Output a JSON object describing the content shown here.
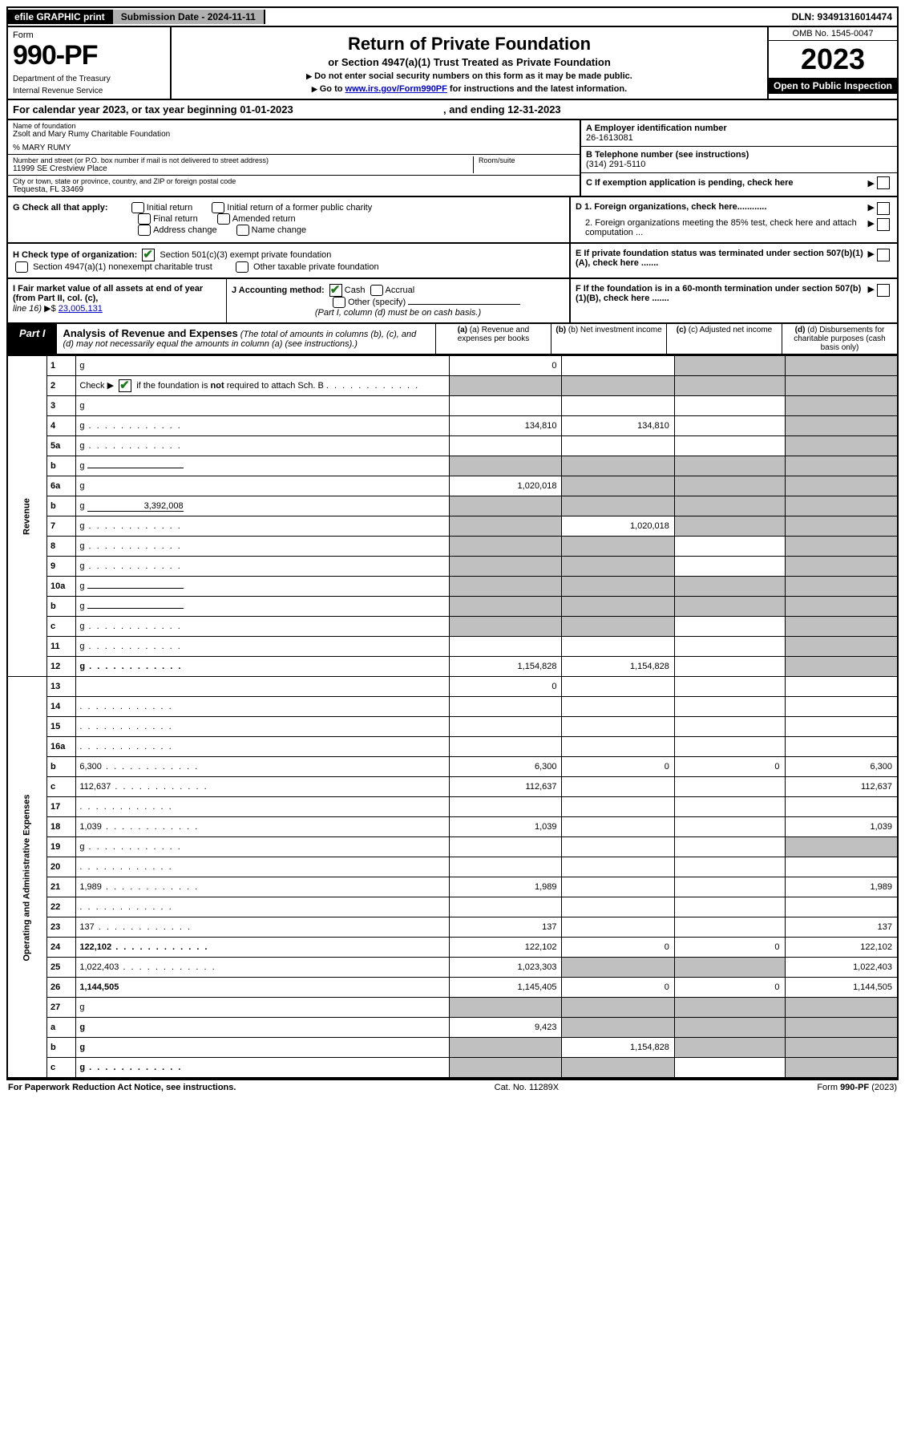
{
  "topbar": {
    "efile": "efile GRAPHIC print",
    "submission": "Submission Date - 2024-11-11",
    "dln": "DLN: 93491316014474"
  },
  "header": {
    "form_label": "Form",
    "form_number": "990-PF",
    "dept1": "Department of the Treasury",
    "dept2": "Internal Revenue Service",
    "title": "Return of Private Foundation",
    "subtitle": "or Section 4947(a)(1) Trust Treated as Private Foundation",
    "instr1": "Do not enter social security numbers on this form as it may be made public.",
    "instr2_pre": "Go to ",
    "instr2_link": "www.irs.gov/Form990PF",
    "instr2_post": " for instructions and the latest information.",
    "omb": "OMB No. 1545-0047",
    "year": "2023",
    "inspection": "Open to Public Inspection"
  },
  "cal_year": {
    "prefix": "For calendar year 2023, or tax year beginning ",
    "begin": "01-01-2023",
    "mid": " , and ending ",
    "end": "12-31-2023"
  },
  "info": {
    "name_label": "Name of foundation",
    "name": "Zsolt and Mary Rumy Charitable Foundation",
    "care_of": "% MARY RUMY",
    "addr_label": "Number and street (or P.O. box number if mail is not delivered to street address)",
    "addr": "11999 SE Crestview Place",
    "room_label": "Room/suite",
    "city_label": "City or town, state or province, country, and ZIP or foreign postal code",
    "city": "Tequesta, FL  33469",
    "ein_label": "A Employer identification number",
    "ein": "26-1613081",
    "phone_label": "B Telephone number (see instructions)",
    "phone": "(314) 291-5110",
    "c_label": "C If exemption application is pending, check here"
  },
  "g": {
    "label": "G Check all that apply:",
    "opts": [
      "Initial return",
      "Final return",
      "Address change",
      "Initial return of a former public charity",
      "Amended return",
      "Name change"
    ],
    "d1": "D 1. Foreign organizations, check here............",
    "d2": "2. Foreign organizations meeting the 85% test, check here and attach computation ...",
    "e": "E  If private foundation status was terminated under section 507(b)(1)(A), check here ......."
  },
  "h": {
    "label": "H Check type of organization:",
    "opt1": "Section 501(c)(3) exempt private foundation",
    "opt2": "Section 4947(a)(1) nonexempt charitable trust",
    "opt3": "Other taxable private foundation"
  },
  "i": {
    "label": "I Fair market value of all assets at end of year (from Part II, col. (c),",
    "line16": "line 16)",
    "value": "23,005,131",
    "j_label": "J Accounting method:",
    "j_cash": "Cash",
    "j_accrual": "Accrual",
    "j_other": "Other (specify)",
    "j_note": "(Part I, column (d) must be on cash basis.)",
    "f": "F  If the foundation is in a 60-month termination under section 507(b)(1)(B), check here ......."
  },
  "part1": {
    "label": "Part I",
    "title": "Analysis of Revenue and Expenses",
    "subtitle": "(The total of amounts in columns (b), (c), and (d) may not necessarily equal the amounts in column (a) (see instructions).)",
    "col_a": "(a) Revenue and expenses per books",
    "col_b": "(b) Net investment income",
    "col_c": "(c) Adjusted net income",
    "col_d": "(d) Disbursements for charitable purposes (cash basis only)"
  },
  "sections": {
    "revenue": "Revenue",
    "expenses": "Operating and Administrative Expenses"
  },
  "rows": [
    {
      "n": "1",
      "d": "g",
      "a": "0",
      "b": "",
      "c": "g"
    },
    {
      "n": "2",
      "d": "g",
      "a": "g",
      "b": "g",
      "c": "g",
      "check": true,
      "dots": true
    },
    {
      "n": "3",
      "d": "g",
      "a": "",
      "b": "",
      "c": ""
    },
    {
      "n": "4",
      "d": "g",
      "a": "134,810",
      "b": "134,810",
      "c": "",
      "dots": true
    },
    {
      "n": "5a",
      "d": "g",
      "a": "",
      "b": "",
      "c": "",
      "dots": true
    },
    {
      "n": "b",
      "d": "g",
      "a": "g",
      "b": "g",
      "c": "g",
      "inline": true
    },
    {
      "n": "6a",
      "d": "g",
      "a": "1,020,018",
      "b": "g",
      "c": "g"
    },
    {
      "n": "b",
      "d": "g",
      "a": "g",
      "b": "g",
      "c": "g",
      "inline_val": "3,392,008"
    },
    {
      "n": "7",
      "d": "g",
      "a": "g",
      "b": "1,020,018",
      "c": "g",
      "dots": true
    },
    {
      "n": "8",
      "d": "g",
      "a": "g",
      "b": "g",
      "c": "",
      "dots": true
    },
    {
      "n": "9",
      "d": "g",
      "a": "g",
      "b": "g",
      "c": "",
      "dots": true
    },
    {
      "n": "10a",
      "d": "g",
      "a": "g",
      "b": "g",
      "c": "g",
      "inline": true
    },
    {
      "n": "b",
      "d": "g",
      "a": "g",
      "b": "g",
      "c": "g",
      "inline": true,
      "dots": true
    },
    {
      "n": "c",
      "d": "g",
      "a": "g",
      "b": "g",
      "c": "",
      "dots": true
    },
    {
      "n": "11",
      "d": "g",
      "a": "",
      "b": "",
      "c": "",
      "dots": true
    },
    {
      "n": "12",
      "d": "g",
      "a": "1,154,828",
      "b": "1,154,828",
      "c": "",
      "bold": true,
      "dots": true
    }
  ],
  "exp_rows": [
    {
      "n": "13",
      "d": "",
      "a": "0",
      "b": "",
      "c": ""
    },
    {
      "n": "14",
      "d": "",
      "a": "",
      "b": "",
      "c": "",
      "dots": true
    },
    {
      "n": "15",
      "d": "",
      "a": "",
      "b": "",
      "c": "",
      "dots": true
    },
    {
      "n": "16a",
      "d": "",
      "a": "",
      "b": "",
      "c": "",
      "dots": true
    },
    {
      "n": "b",
      "d": "6,300",
      "a": "6,300",
      "b": "0",
      "c": "0",
      "dots": true
    },
    {
      "n": "c",
      "d": "112,637",
      "a": "112,637",
      "b": "",
      "c": "",
      "dots": true
    },
    {
      "n": "17",
      "d": "",
      "a": "",
      "b": "",
      "c": "",
      "dots": true
    },
    {
      "n": "18",
      "d": "1,039",
      "a": "1,039",
      "b": "",
      "c": "",
      "dots": true
    },
    {
      "n": "19",
      "d": "g",
      "a": "",
      "b": "",
      "c": "",
      "dots": true
    },
    {
      "n": "20",
      "d": "",
      "a": "",
      "b": "",
      "c": "",
      "dots": true
    },
    {
      "n": "21",
      "d": "1,989",
      "a": "1,989",
      "b": "",
      "c": "",
      "dots": true
    },
    {
      "n": "22",
      "d": "",
      "a": "",
      "b": "",
      "c": "",
      "dots": true
    },
    {
      "n": "23",
      "d": "137",
      "a": "137",
      "b": "",
      "c": "",
      "dots": true
    },
    {
      "n": "24",
      "d": "122,102",
      "a": "122,102",
      "b": "0",
      "c": "0",
      "bold": true,
      "dots": true
    },
    {
      "n": "25",
      "d": "1,022,403",
      "a": "1,023,303",
      "b": "g",
      "c": "g",
      "dots": true
    },
    {
      "n": "26",
      "d": "1,144,505",
      "a": "1,145,405",
      "b": "0",
      "c": "0",
      "bold": true
    },
    {
      "n": "27",
      "d": "g",
      "a": "g",
      "b": "g",
      "c": "g"
    },
    {
      "n": "a",
      "d": "g",
      "a": "9,423",
      "b": "g",
      "c": "g",
      "bold": true
    },
    {
      "n": "b",
      "d": "g",
      "a": "g",
      "b": "1,154,828",
      "c": "g",
      "bold": true
    },
    {
      "n": "c",
      "d": "g",
      "a": "g",
      "b": "g",
      "c": "",
      "bold": true,
      "dots": true
    }
  ],
  "footer": {
    "left": "For Paperwork Reduction Act Notice, see instructions.",
    "mid": "Cat. No. 11289X",
    "right": "Form 990-PF (2023)"
  }
}
